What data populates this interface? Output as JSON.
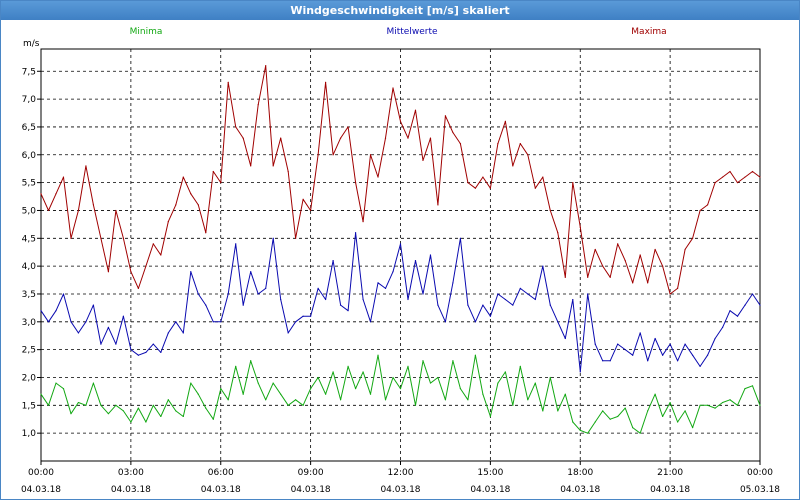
{
  "window": {
    "title": "Windgeschwindigkeit [m/s] skaliert"
  },
  "chart_data": {
    "type": "line",
    "title": "Windgeschwindigkeit [m/s] skaliert",
    "ylabel": "m/s",
    "ylim": [
      0.5,
      7.9
    ],
    "xlim": [
      "2018-03-04 00:00",
      "2018-03-05 00:00"
    ],
    "yticks": [
      "1,0",
      "1,5",
      "2,0",
      "2,5",
      "3,0",
      "3,5",
      "4,0",
      "4,5",
      "5,0",
      "5,5",
      "6,0",
      "6,5",
      "7,0",
      "7,5"
    ],
    "ytick_values": [
      1.0,
      1.5,
      2.0,
      2.5,
      3.0,
      3.5,
      4.0,
      4.5,
      5.0,
      5.5,
      6.0,
      6.5,
      7.0,
      7.5
    ],
    "xticks": [
      {
        "time": "00:00",
        "date": "04.03.18",
        "hour": 0
      },
      {
        "time": "03:00",
        "date": "04.03.18",
        "hour": 3
      },
      {
        "time": "06:00",
        "date": "04.03.18",
        "hour": 6
      },
      {
        "time": "09:00",
        "date": "04.03.18",
        "hour": 9
      },
      {
        "time": "12:00",
        "date": "04.03.18",
        "hour": 12
      },
      {
        "time": "15:00",
        "date": "04.03.18",
        "hour": 15
      },
      {
        "time": "18:00",
        "date": "04.03.18",
        "hour": 18
      },
      {
        "time": "21:00",
        "date": "04.03.18",
        "hour": 21
      },
      {
        "time": "00:00",
        "date": "05.03.18",
        "hour": 24
      }
    ],
    "x_hours": [
      0.0,
      0.25,
      0.5,
      0.75,
      1.0,
      1.25,
      1.5,
      1.75,
      2.0,
      2.25,
      2.5,
      2.75,
      3.0,
      3.25,
      3.5,
      3.75,
      4.0,
      4.25,
      4.5,
      4.75,
      5.0,
      5.25,
      5.5,
      5.75,
      6.0,
      6.25,
      6.5,
      6.75,
      7.0,
      7.25,
      7.5,
      7.75,
      8.0,
      8.25,
      8.5,
      8.75,
      9.0,
      9.25,
      9.5,
      9.75,
      10.0,
      10.25,
      10.5,
      10.75,
      11.0,
      11.25,
      11.5,
      11.75,
      12.0,
      12.25,
      12.5,
      12.75,
      13.0,
      13.25,
      13.5,
      13.75,
      14.0,
      14.25,
      14.5,
      14.75,
      15.0,
      15.25,
      15.5,
      15.75,
      16.0,
      16.25,
      16.5,
      16.75,
      17.0,
      17.25,
      17.5,
      17.75,
      18.0,
      18.25,
      18.5,
      18.75,
      19.0,
      19.25,
      19.5,
      19.75,
      20.0,
      20.25,
      20.5,
      20.75,
      21.0,
      21.25,
      21.5,
      21.75,
      22.0,
      22.25,
      22.5,
      22.75,
      23.0,
      23.25,
      23.5,
      23.75,
      24.0
    ],
    "grid": true,
    "series": [
      {
        "name": "Minima",
        "color": "#13a813",
        "legend_position": "top-left",
        "values": [
          1.7,
          1.5,
          1.9,
          1.8,
          1.35,
          1.55,
          1.5,
          1.9,
          1.5,
          1.35,
          1.5,
          1.4,
          1.2,
          1.45,
          1.2,
          1.5,
          1.3,
          1.6,
          1.4,
          1.3,
          1.9,
          1.7,
          1.45,
          1.25,
          1.8,
          1.6,
          2.2,
          1.7,
          2.3,
          1.9,
          1.6,
          1.9,
          1.7,
          1.5,
          1.6,
          1.5,
          1.8,
          2.0,
          1.7,
          2.1,
          1.6,
          2.2,
          1.8,
          2.1,
          1.7,
          2.4,
          1.6,
          2.0,
          1.8,
          2.2,
          1.5,
          2.3,
          1.9,
          2.0,
          1.6,
          2.3,
          1.8,
          1.6,
          2.4,
          1.7,
          1.3,
          1.9,
          2.1,
          1.5,
          2.2,
          1.6,
          1.9,
          1.4,
          2.0,
          1.4,
          1.7,
          1.2,
          1.05,
          1.0,
          1.2,
          1.4,
          1.25,
          1.3,
          1.45,
          1.1,
          1.0,
          1.4,
          1.7,
          1.3,
          1.55,
          1.2,
          1.4,
          1.1,
          1.5,
          1.5,
          1.45,
          1.55,
          1.6,
          1.5,
          1.8,
          1.85,
          1.5
        ]
      },
      {
        "name": "Mittelwerte",
        "color": "#0a0ab0",
        "legend_position": "top-center",
        "values": [
          3.2,
          3.0,
          3.2,
          3.5,
          3.0,
          2.8,
          3.0,
          3.3,
          2.6,
          2.9,
          2.6,
          3.1,
          2.5,
          2.4,
          2.45,
          2.6,
          2.45,
          2.8,
          3.0,
          2.8,
          3.9,
          3.5,
          3.3,
          3.0,
          3.0,
          3.5,
          4.4,
          3.3,
          3.9,
          3.5,
          3.6,
          4.5,
          3.4,
          2.8,
          3.0,
          3.1,
          3.1,
          3.6,
          3.4,
          4.1,
          3.3,
          3.2,
          4.6,
          3.4,
          3.0,
          3.7,
          3.6,
          3.9,
          4.4,
          3.4,
          4.1,
          3.5,
          4.2,
          3.3,
          3.0,
          3.7,
          4.5,
          3.3,
          3.0,
          3.3,
          3.1,
          3.5,
          3.4,
          3.3,
          3.6,
          3.5,
          3.4,
          4.0,
          3.3,
          3.0,
          2.7,
          3.4,
          2.1,
          3.5,
          2.6,
          2.3,
          2.3,
          2.6,
          2.5,
          2.4,
          2.8,
          2.3,
          2.7,
          2.4,
          2.6,
          2.3,
          2.6,
          2.4,
          2.2,
          2.4,
          2.7,
          2.9,
          3.2,
          3.1,
          3.3,
          3.5,
          3.3
        ]
      },
      {
        "name": "Maxima",
        "color": "#a00000",
        "legend_position": "top-right",
        "values": [
          5.3,
          5.0,
          5.3,
          5.6,
          4.5,
          5.0,
          5.8,
          5.1,
          4.5,
          3.9,
          5.0,
          4.5,
          3.9,
          3.6,
          4.0,
          4.4,
          4.2,
          4.8,
          5.1,
          5.6,
          5.3,
          5.1,
          4.6,
          5.7,
          5.5,
          7.3,
          6.5,
          6.3,
          5.8,
          6.9,
          7.6,
          5.8,
          6.3,
          5.7,
          4.5,
          5.2,
          5.0,
          6.0,
          7.3,
          6.0,
          6.3,
          6.5,
          5.5,
          4.8,
          6.0,
          5.6,
          6.3,
          7.2,
          6.6,
          6.3,
          6.8,
          5.9,
          6.3,
          5.1,
          6.7,
          6.4,
          6.2,
          5.5,
          5.4,
          5.6,
          5.4,
          6.2,
          6.6,
          5.8,
          6.2,
          6.0,
          5.4,
          5.6,
          5.0,
          4.6,
          3.8,
          5.5,
          4.7,
          3.8,
          4.3,
          4.0,
          3.8,
          4.4,
          4.1,
          3.7,
          4.2,
          3.7,
          4.3,
          4.0,
          3.5,
          3.6,
          4.3,
          4.5,
          5.0,
          5.1,
          5.5,
          5.6,
          5.7,
          5.5,
          5.6,
          5.7,
          5.6
        ]
      }
    ]
  }
}
